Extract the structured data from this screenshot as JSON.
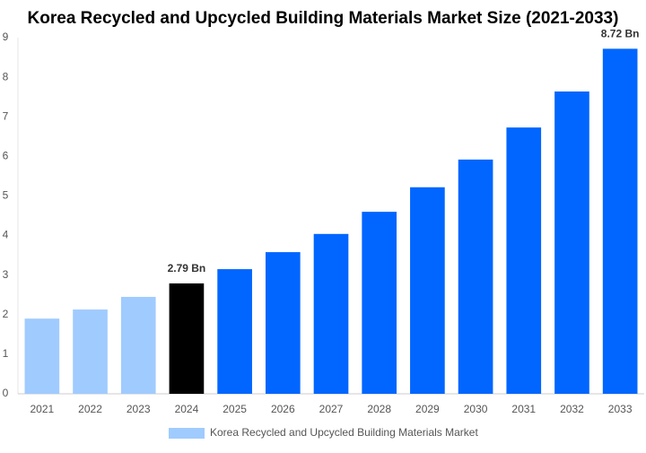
{
  "chart_data": {
    "type": "bar",
    "title": "Korea Recycled and Upcycled Building Materials Market Size (2021-2033)",
    "categories": [
      "2021",
      "2022",
      "2023",
      "2024",
      "2025",
      "2026",
      "2027",
      "2028",
      "2029",
      "2030",
      "2031",
      "2032",
      "2033"
    ],
    "series": [
      {
        "name": "Korea Recycled and Upcycled Building Materials Market",
        "color": "#a0cbff",
        "colors": [
          "#a0cbff",
          "#a0cbff",
          "#a0cbff",
          "#000000",
          "#0066ff",
          "#0066ff",
          "#0066ff",
          "#0066ff",
          "#0066ff",
          "#0066ff",
          "#0066ff",
          "#0066ff",
          "#0066ff"
        ],
        "values": [
          1.9,
          2.13,
          2.45,
          2.79,
          3.15,
          3.58,
          4.04,
          4.6,
          5.22,
          5.92,
          6.73,
          7.64,
          8.72
        ],
        "value_labels": [
          null,
          null,
          null,
          "2.79 Bn",
          null,
          null,
          null,
          null,
          null,
          null,
          null,
          null,
          "8.72 Bn"
        ]
      }
    ],
    "ylim": [
      0,
      9
    ],
    "yticks": [
      0,
      1,
      2,
      3,
      4,
      5,
      6,
      7,
      8,
      9
    ],
    "grid": false,
    "legend": "bottom"
  }
}
